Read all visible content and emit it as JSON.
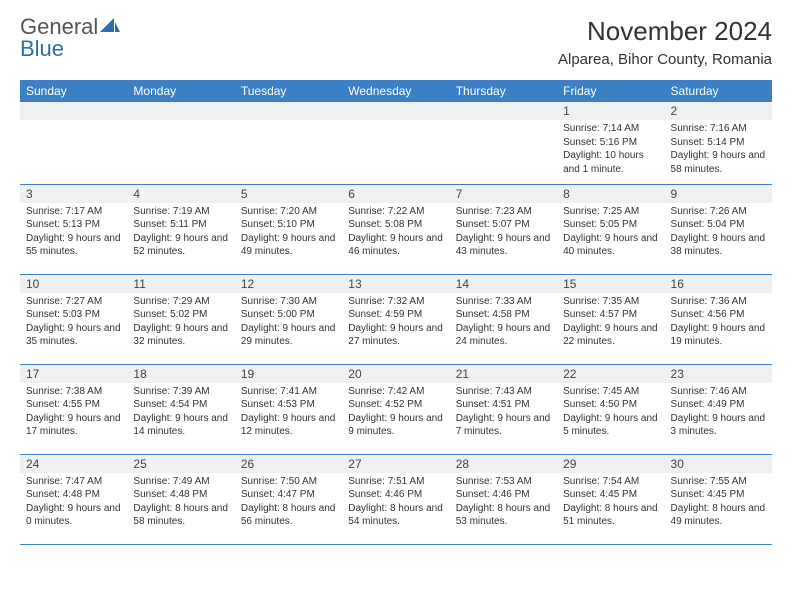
{
  "brand": {
    "word1": "General",
    "word2": "Blue"
  },
  "title": "November 2024",
  "location": "Alparea, Bihor County, Romania",
  "colors": {
    "header_blue": "#3b7fc4",
    "cell_gray": "#eef0f2",
    "text": "#333333",
    "logo_blue": "#2f6fa9"
  },
  "weekdays": [
    "Sunday",
    "Monday",
    "Tuesday",
    "Wednesday",
    "Thursday",
    "Friday",
    "Saturday"
  ],
  "weeks": [
    [
      {
        "blank": true
      },
      {
        "blank": true
      },
      {
        "blank": true
      },
      {
        "blank": true
      },
      {
        "blank": true
      },
      {
        "n": "1",
        "sunrise": "Sunrise: 7:14 AM",
        "sunset": "Sunset: 5:16 PM",
        "daylight": "Daylight: 10 hours and 1 minute."
      },
      {
        "n": "2",
        "sunrise": "Sunrise: 7:16 AM",
        "sunset": "Sunset: 5:14 PM",
        "daylight": "Daylight: 9 hours and 58 minutes."
      }
    ],
    [
      {
        "n": "3",
        "sunrise": "Sunrise: 7:17 AM",
        "sunset": "Sunset: 5:13 PM",
        "daylight": "Daylight: 9 hours and 55 minutes."
      },
      {
        "n": "4",
        "sunrise": "Sunrise: 7:19 AM",
        "sunset": "Sunset: 5:11 PM",
        "daylight": "Daylight: 9 hours and 52 minutes."
      },
      {
        "n": "5",
        "sunrise": "Sunrise: 7:20 AM",
        "sunset": "Sunset: 5:10 PM",
        "daylight": "Daylight: 9 hours and 49 minutes."
      },
      {
        "n": "6",
        "sunrise": "Sunrise: 7:22 AM",
        "sunset": "Sunset: 5:08 PM",
        "daylight": "Daylight: 9 hours and 46 minutes."
      },
      {
        "n": "7",
        "sunrise": "Sunrise: 7:23 AM",
        "sunset": "Sunset: 5:07 PM",
        "daylight": "Daylight: 9 hours and 43 minutes."
      },
      {
        "n": "8",
        "sunrise": "Sunrise: 7:25 AM",
        "sunset": "Sunset: 5:05 PM",
        "daylight": "Daylight: 9 hours and 40 minutes."
      },
      {
        "n": "9",
        "sunrise": "Sunrise: 7:26 AM",
        "sunset": "Sunset: 5:04 PM",
        "daylight": "Daylight: 9 hours and 38 minutes."
      }
    ],
    [
      {
        "n": "10",
        "sunrise": "Sunrise: 7:27 AM",
        "sunset": "Sunset: 5:03 PM",
        "daylight": "Daylight: 9 hours and 35 minutes."
      },
      {
        "n": "11",
        "sunrise": "Sunrise: 7:29 AM",
        "sunset": "Sunset: 5:02 PM",
        "daylight": "Daylight: 9 hours and 32 minutes."
      },
      {
        "n": "12",
        "sunrise": "Sunrise: 7:30 AM",
        "sunset": "Sunset: 5:00 PM",
        "daylight": "Daylight: 9 hours and 29 minutes."
      },
      {
        "n": "13",
        "sunrise": "Sunrise: 7:32 AM",
        "sunset": "Sunset: 4:59 PM",
        "daylight": "Daylight: 9 hours and 27 minutes."
      },
      {
        "n": "14",
        "sunrise": "Sunrise: 7:33 AM",
        "sunset": "Sunset: 4:58 PM",
        "daylight": "Daylight: 9 hours and 24 minutes."
      },
      {
        "n": "15",
        "sunrise": "Sunrise: 7:35 AM",
        "sunset": "Sunset: 4:57 PM",
        "daylight": "Daylight: 9 hours and 22 minutes."
      },
      {
        "n": "16",
        "sunrise": "Sunrise: 7:36 AM",
        "sunset": "Sunset: 4:56 PM",
        "daylight": "Daylight: 9 hours and 19 minutes."
      }
    ],
    [
      {
        "n": "17",
        "sunrise": "Sunrise: 7:38 AM",
        "sunset": "Sunset: 4:55 PM",
        "daylight": "Daylight: 9 hours and 17 minutes."
      },
      {
        "n": "18",
        "sunrise": "Sunrise: 7:39 AM",
        "sunset": "Sunset: 4:54 PM",
        "daylight": "Daylight: 9 hours and 14 minutes."
      },
      {
        "n": "19",
        "sunrise": "Sunrise: 7:41 AM",
        "sunset": "Sunset: 4:53 PM",
        "daylight": "Daylight: 9 hours and 12 minutes."
      },
      {
        "n": "20",
        "sunrise": "Sunrise: 7:42 AM",
        "sunset": "Sunset: 4:52 PM",
        "daylight": "Daylight: 9 hours and 9 minutes."
      },
      {
        "n": "21",
        "sunrise": "Sunrise: 7:43 AM",
        "sunset": "Sunset: 4:51 PM",
        "daylight": "Daylight: 9 hours and 7 minutes."
      },
      {
        "n": "22",
        "sunrise": "Sunrise: 7:45 AM",
        "sunset": "Sunset: 4:50 PM",
        "daylight": "Daylight: 9 hours and 5 minutes."
      },
      {
        "n": "23",
        "sunrise": "Sunrise: 7:46 AM",
        "sunset": "Sunset: 4:49 PM",
        "daylight": "Daylight: 9 hours and 3 minutes."
      }
    ],
    [
      {
        "n": "24",
        "sunrise": "Sunrise: 7:47 AM",
        "sunset": "Sunset: 4:48 PM",
        "daylight": "Daylight: 9 hours and 0 minutes."
      },
      {
        "n": "25",
        "sunrise": "Sunrise: 7:49 AM",
        "sunset": "Sunset: 4:48 PM",
        "daylight": "Daylight: 8 hours and 58 minutes."
      },
      {
        "n": "26",
        "sunrise": "Sunrise: 7:50 AM",
        "sunset": "Sunset: 4:47 PM",
        "daylight": "Daylight: 8 hours and 56 minutes."
      },
      {
        "n": "27",
        "sunrise": "Sunrise: 7:51 AM",
        "sunset": "Sunset: 4:46 PM",
        "daylight": "Daylight: 8 hours and 54 minutes."
      },
      {
        "n": "28",
        "sunrise": "Sunrise: 7:53 AM",
        "sunset": "Sunset: 4:46 PM",
        "daylight": "Daylight: 8 hours and 53 minutes."
      },
      {
        "n": "29",
        "sunrise": "Sunrise: 7:54 AM",
        "sunset": "Sunset: 4:45 PM",
        "daylight": "Daylight: 8 hours and 51 minutes."
      },
      {
        "n": "30",
        "sunrise": "Sunrise: 7:55 AM",
        "sunset": "Sunset: 4:45 PM",
        "daylight": "Daylight: 8 hours and 49 minutes."
      }
    ]
  ]
}
